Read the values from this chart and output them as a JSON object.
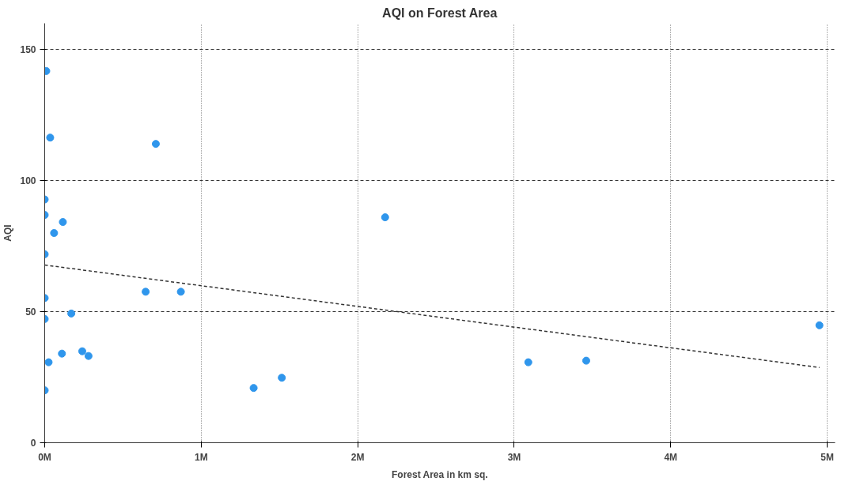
{
  "chart_data": {
    "type": "scatter",
    "title": "AQI on Forest Area",
    "xlabel": "Forest Area in km sq.",
    "ylabel": "AQI",
    "xlim": [
      0,
      5050000
    ],
    "ylim": [
      0,
      160
    ],
    "xticks": [
      {
        "value": 0,
        "label": "0M"
      },
      {
        "value": 1000000,
        "label": "1M"
      },
      {
        "value": 2000000,
        "label": "2M"
      },
      {
        "value": 3000000,
        "label": "3M"
      },
      {
        "value": 4000000,
        "label": "4M"
      },
      {
        "value": 5000000,
        "label": "5M"
      }
    ],
    "yticks": [
      0,
      50,
      100,
      150
    ],
    "grid": true,
    "marker": "circle",
    "series": [
      {
        "color": "#2f96ec",
        "x": [
          10000,
          35000,
          0,
          0,
          116000,
          60000,
          0,
          0,
          170000,
          0,
          25000,
          110000,
          240000,
          280000,
          0,
          710000,
          645000,
          870000,
          1335000,
          1515000,
          2175000,
          3090000,
          3460000,
          4950000
        ],
        "values": [
          141.8,
          116.4,
          92.8,
          86.9,
          84.2,
          80,
          71.9,
          55.2,
          49.3,
          47.2,
          30.7,
          34,
          34.9,
          33.1,
          20,
          114,
          57.6,
          57.6,
          20.9,
          24.8,
          86,
          30.7,
          31.3,
          44.8
        ]
      },
      {
        "type": "line",
        "color": "#333333",
        "line_style": "dashed",
        "marker": "none",
        "x": [
          0,
          4950000
        ],
        "values": [
          67.8,
          28.7
        ]
      }
    ]
  }
}
